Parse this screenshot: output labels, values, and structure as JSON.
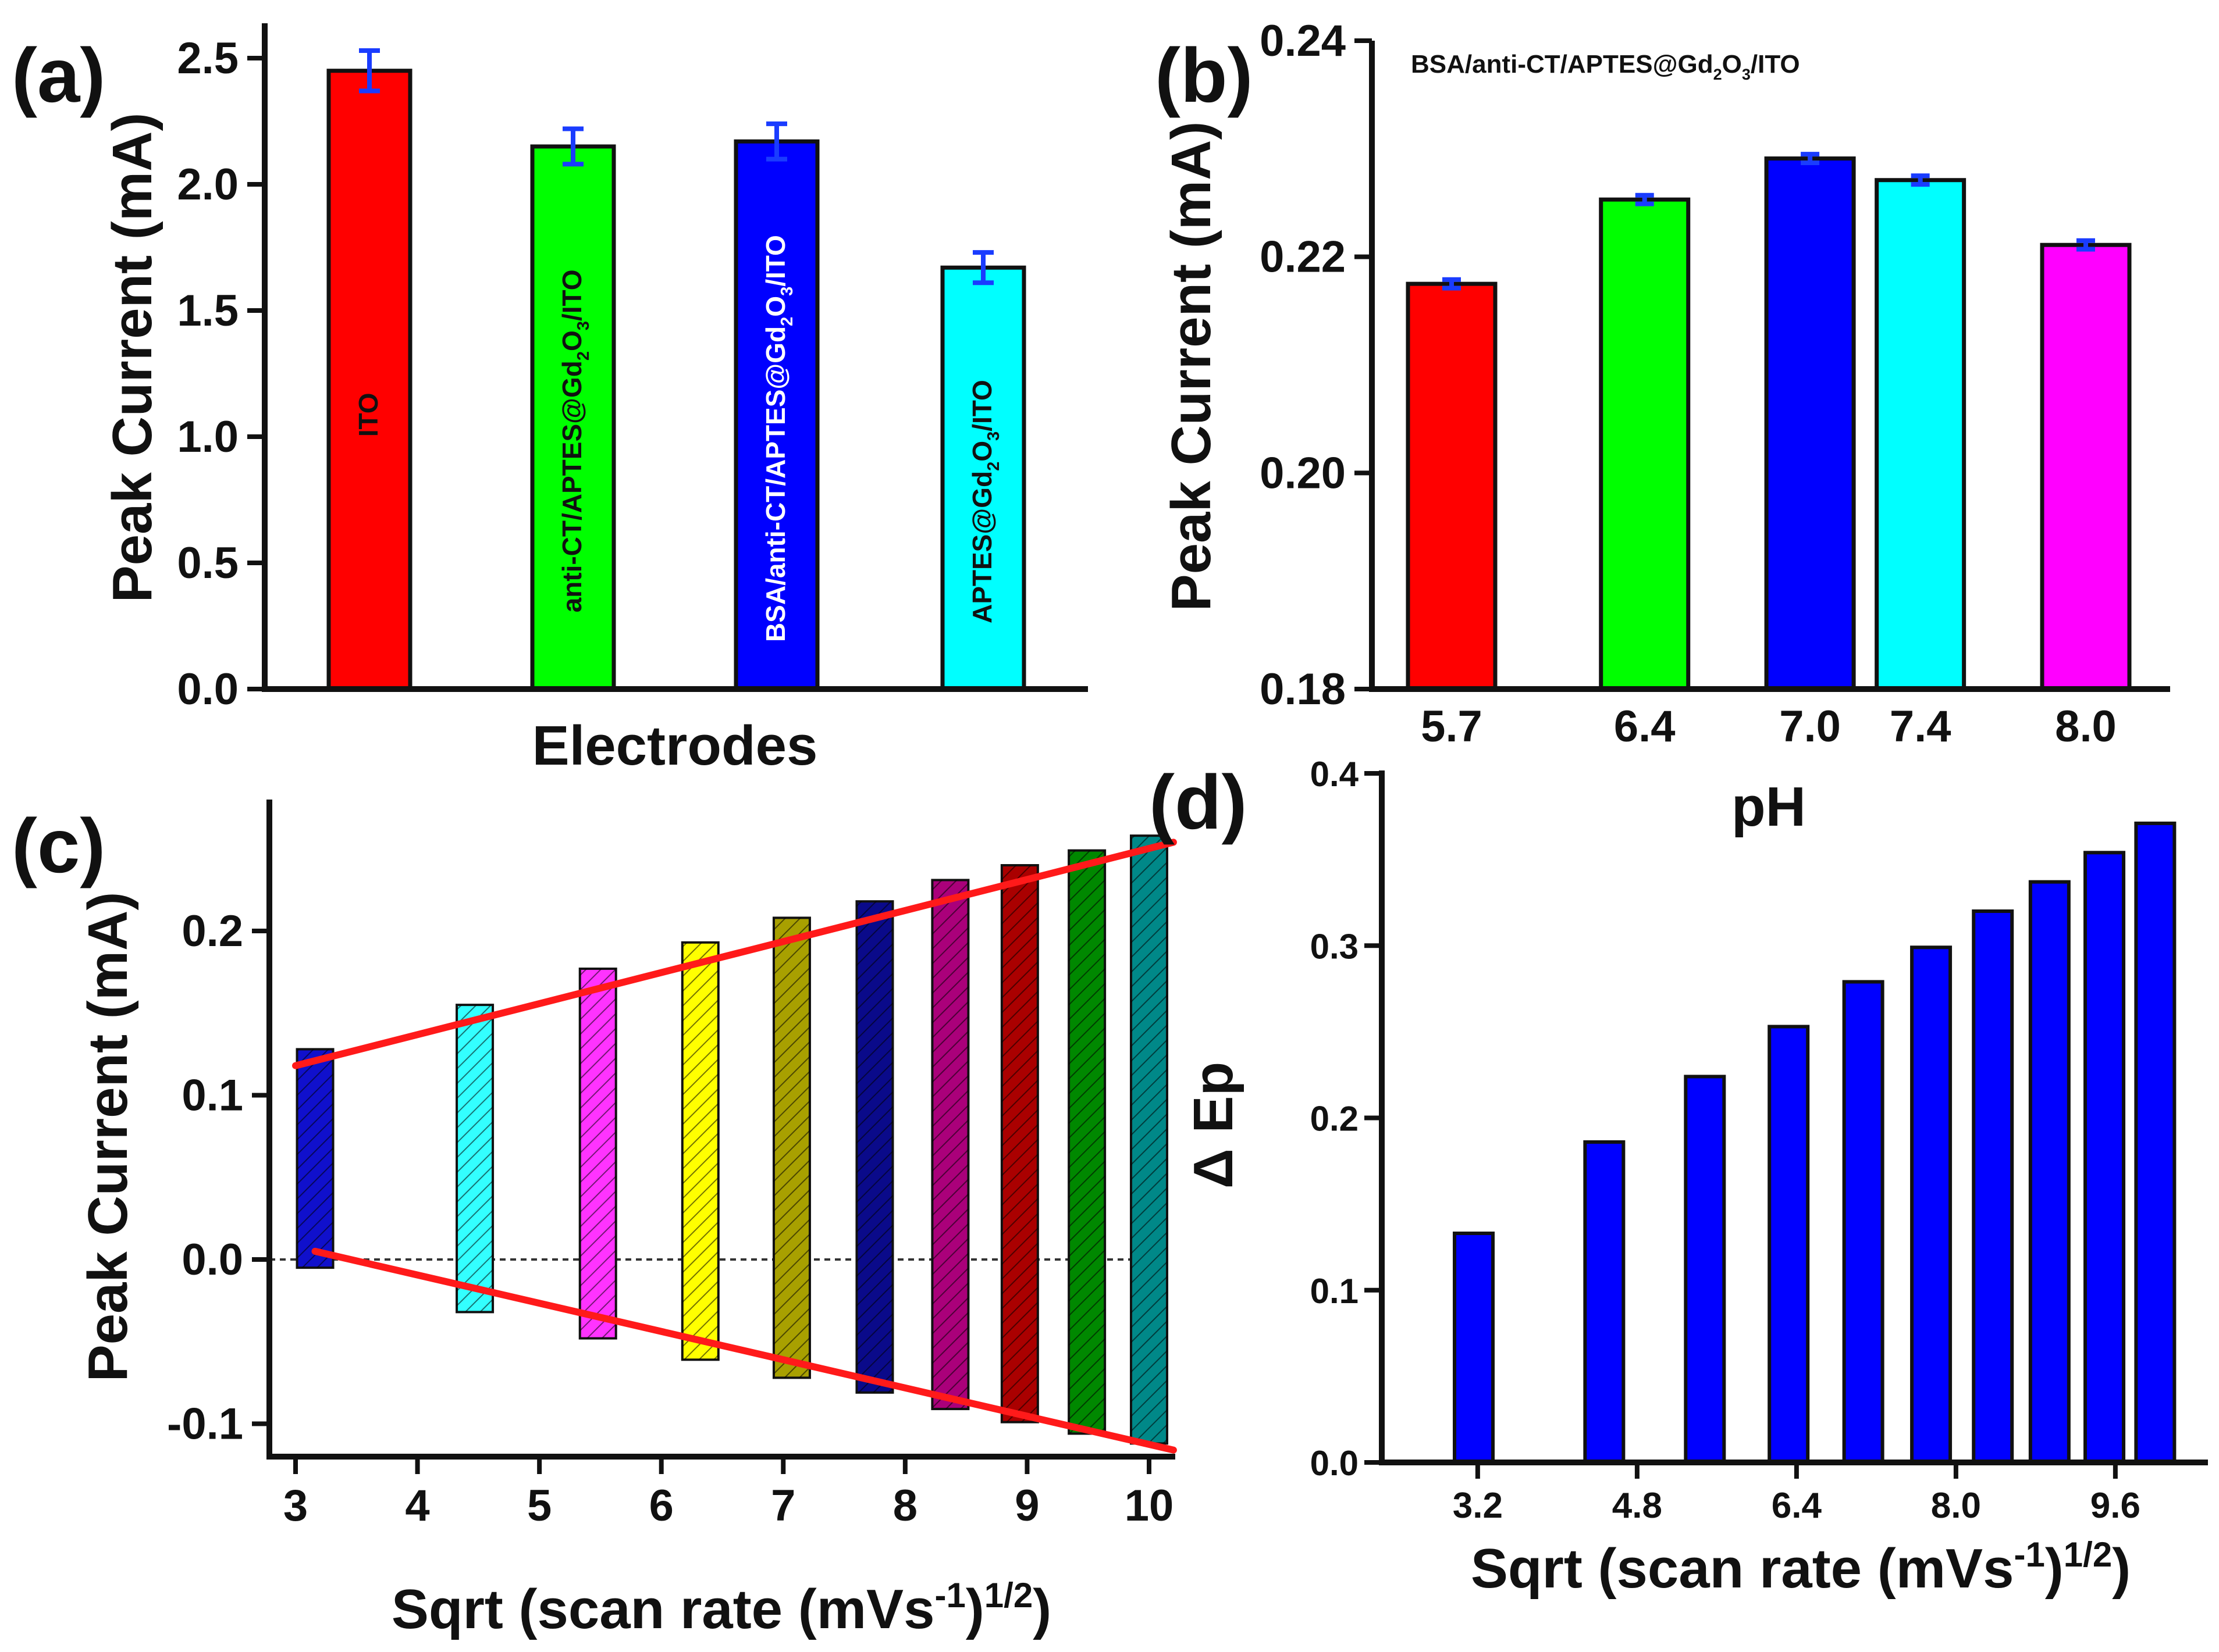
{
  "chart_data": [
    {
      "id": "a",
      "type": "bar",
      "panel_label": "(a)",
      "xlabel": "Electrodes",
      "ylabel": "Peak Current (mA)",
      "ylim": [
        0.0,
        2.5
      ],
      "yticks": [
        "0.0",
        "0.5",
        "1.0",
        "1.5",
        "2.0",
        "2.5"
      ],
      "categories": [
        "ITO",
        "anti-CT/APTES@Gd2O3/ITO",
        "BSA/anti-CT/APTES@Gd2O3/ITO",
        "APTES@Gd2O3/ITO"
      ],
      "values": [
        2.45,
        2.15,
        2.17,
        1.67
      ],
      "errors": [
        0.08,
        0.07,
        0.07,
        0.06
      ],
      "colors": [
        "#ff0000",
        "#00ff00",
        "#0000ff",
        "#00ffff"
      ],
      "bar_labels": [
        {
          "text": "ITO"
        },
        {
          "text": "anti-CT/APTES@Gd",
          "sub1": "2",
          "mid": "O",
          "sub2": "3",
          "tail": "/ITO"
        },
        {
          "text": "BSA/anti-CT/APTES@Gd",
          "sub1": "2",
          "mid": "O",
          "sub2": "3",
          "tail": "/ITO"
        },
        {
          "text": "APTES@Gd",
          "sub1": "2",
          "mid": "O",
          "sub2": "3",
          "tail": "/ITO"
        }
      ],
      "error_color": "#1a3cff"
    },
    {
      "id": "b",
      "type": "bar",
      "panel_label": "(b)",
      "xlabel": "pH",
      "ylabel": "Peak Current (mA)",
      "ylim": [
        0.18,
        0.24
      ],
      "yticks": [
        "0.18",
        "0.20",
        "0.22",
        "0.24"
      ],
      "categories": [
        "5.7",
        "6.4",
        "7.0",
        "7.4",
        "8.0"
      ],
      "x": [
        5.7,
        6.4,
        7.0,
        7.4,
        8.0
      ],
      "values": [
        0.2175,
        0.2253,
        0.2291,
        0.2271,
        0.2211
      ],
      "errors": [
        0.0004,
        0.0004,
        0.0004,
        0.0004,
        0.0004
      ],
      "colors": [
        "#ff0000",
        "#00ff00",
        "#0000ff",
        "#00ffff",
        "#ff00ff"
      ],
      "annotation": {
        "text": "BSA/anti-CT/APTES@Gd",
        "sub1": "2",
        "mid": "O",
        "sub2": "3",
        "tail": "/ITO"
      },
      "error_color": "#1a3cff"
    },
    {
      "id": "c",
      "type": "bar",
      "panel_label": "(c)",
      "xlabel": {
        "text": "Sqrt (scan rate (mVs",
        "sup1": "-1",
        "mid": ")",
        "sup2": "1/2",
        "tail": ")"
      },
      "ylabel": "Peak Current (mA)",
      "xlim": [
        3,
        10
      ],
      "ylim": [
        -0.12,
        0.28
      ],
      "xticks": [
        "3",
        "4",
        "5",
        "6",
        "7",
        "8",
        "9",
        "10"
      ],
      "yticks": [
        "-0.1",
        "0.0",
        "0.1",
        "0.2"
      ],
      "x": [
        3.16,
        4.47,
        5.48,
        6.32,
        7.07,
        7.75,
        8.37,
        8.94,
        9.49,
        10.0
      ],
      "top": [
        0.128,
        0.155,
        0.177,
        0.193,
        0.208,
        0.218,
        0.231,
        0.24,
        0.249,
        0.258
      ],
      "bottom": [
        -0.005,
        -0.032,
        -0.048,
        -0.061,
        -0.072,
        -0.081,
        -0.091,
        -0.099,
        -0.106,
        -0.112
      ],
      "colors": [
        "#1010cc",
        "#33ffff",
        "#ff33ff",
        "#ffff00",
        "#a8a000",
        "#0a0a8a",
        "#aa007a",
        "#aa0000",
        "#008800",
        "#008888"
      ],
      "fit_lines": {
        "upper": {
          "x": [
            3.0,
            10.2
          ],
          "y": [
            0.118,
            0.254
          ]
        },
        "lower": {
          "x": [
            3.16,
            10.2
          ],
          "y": [
            0.005,
            -0.116
          ]
        }
      },
      "fit_color": "#ff1a1a",
      "zero_line": true
    },
    {
      "id": "d",
      "type": "bar",
      "panel_label": "(d)",
      "xlabel": {
        "text": "Sqrt (scan rate (mVs",
        "sup1": "-1",
        "mid": ")",
        "sup2": "1/2",
        "tail": ")"
      },
      "ylabel": "Δ Ep",
      "xlim": [
        2.5,
        10.5
      ],
      "ylim": [
        0.0,
        0.4
      ],
      "xticks": [
        "3.2",
        "4.8",
        "6.4",
        "8.0",
        "9.6"
      ],
      "yticks": [
        "0.0",
        "0.1",
        "0.2",
        "0.3",
        "0.4"
      ],
      "x": [
        3.16,
        4.47,
        5.48,
        6.32,
        7.07,
        7.75,
        8.37,
        8.94,
        9.49,
        10.0
      ],
      "values": [
        0.133,
        0.186,
        0.224,
        0.253,
        0.279,
        0.299,
        0.32,
        0.337,
        0.354,
        0.371
      ],
      "color": "#0000ff"
    }
  ]
}
